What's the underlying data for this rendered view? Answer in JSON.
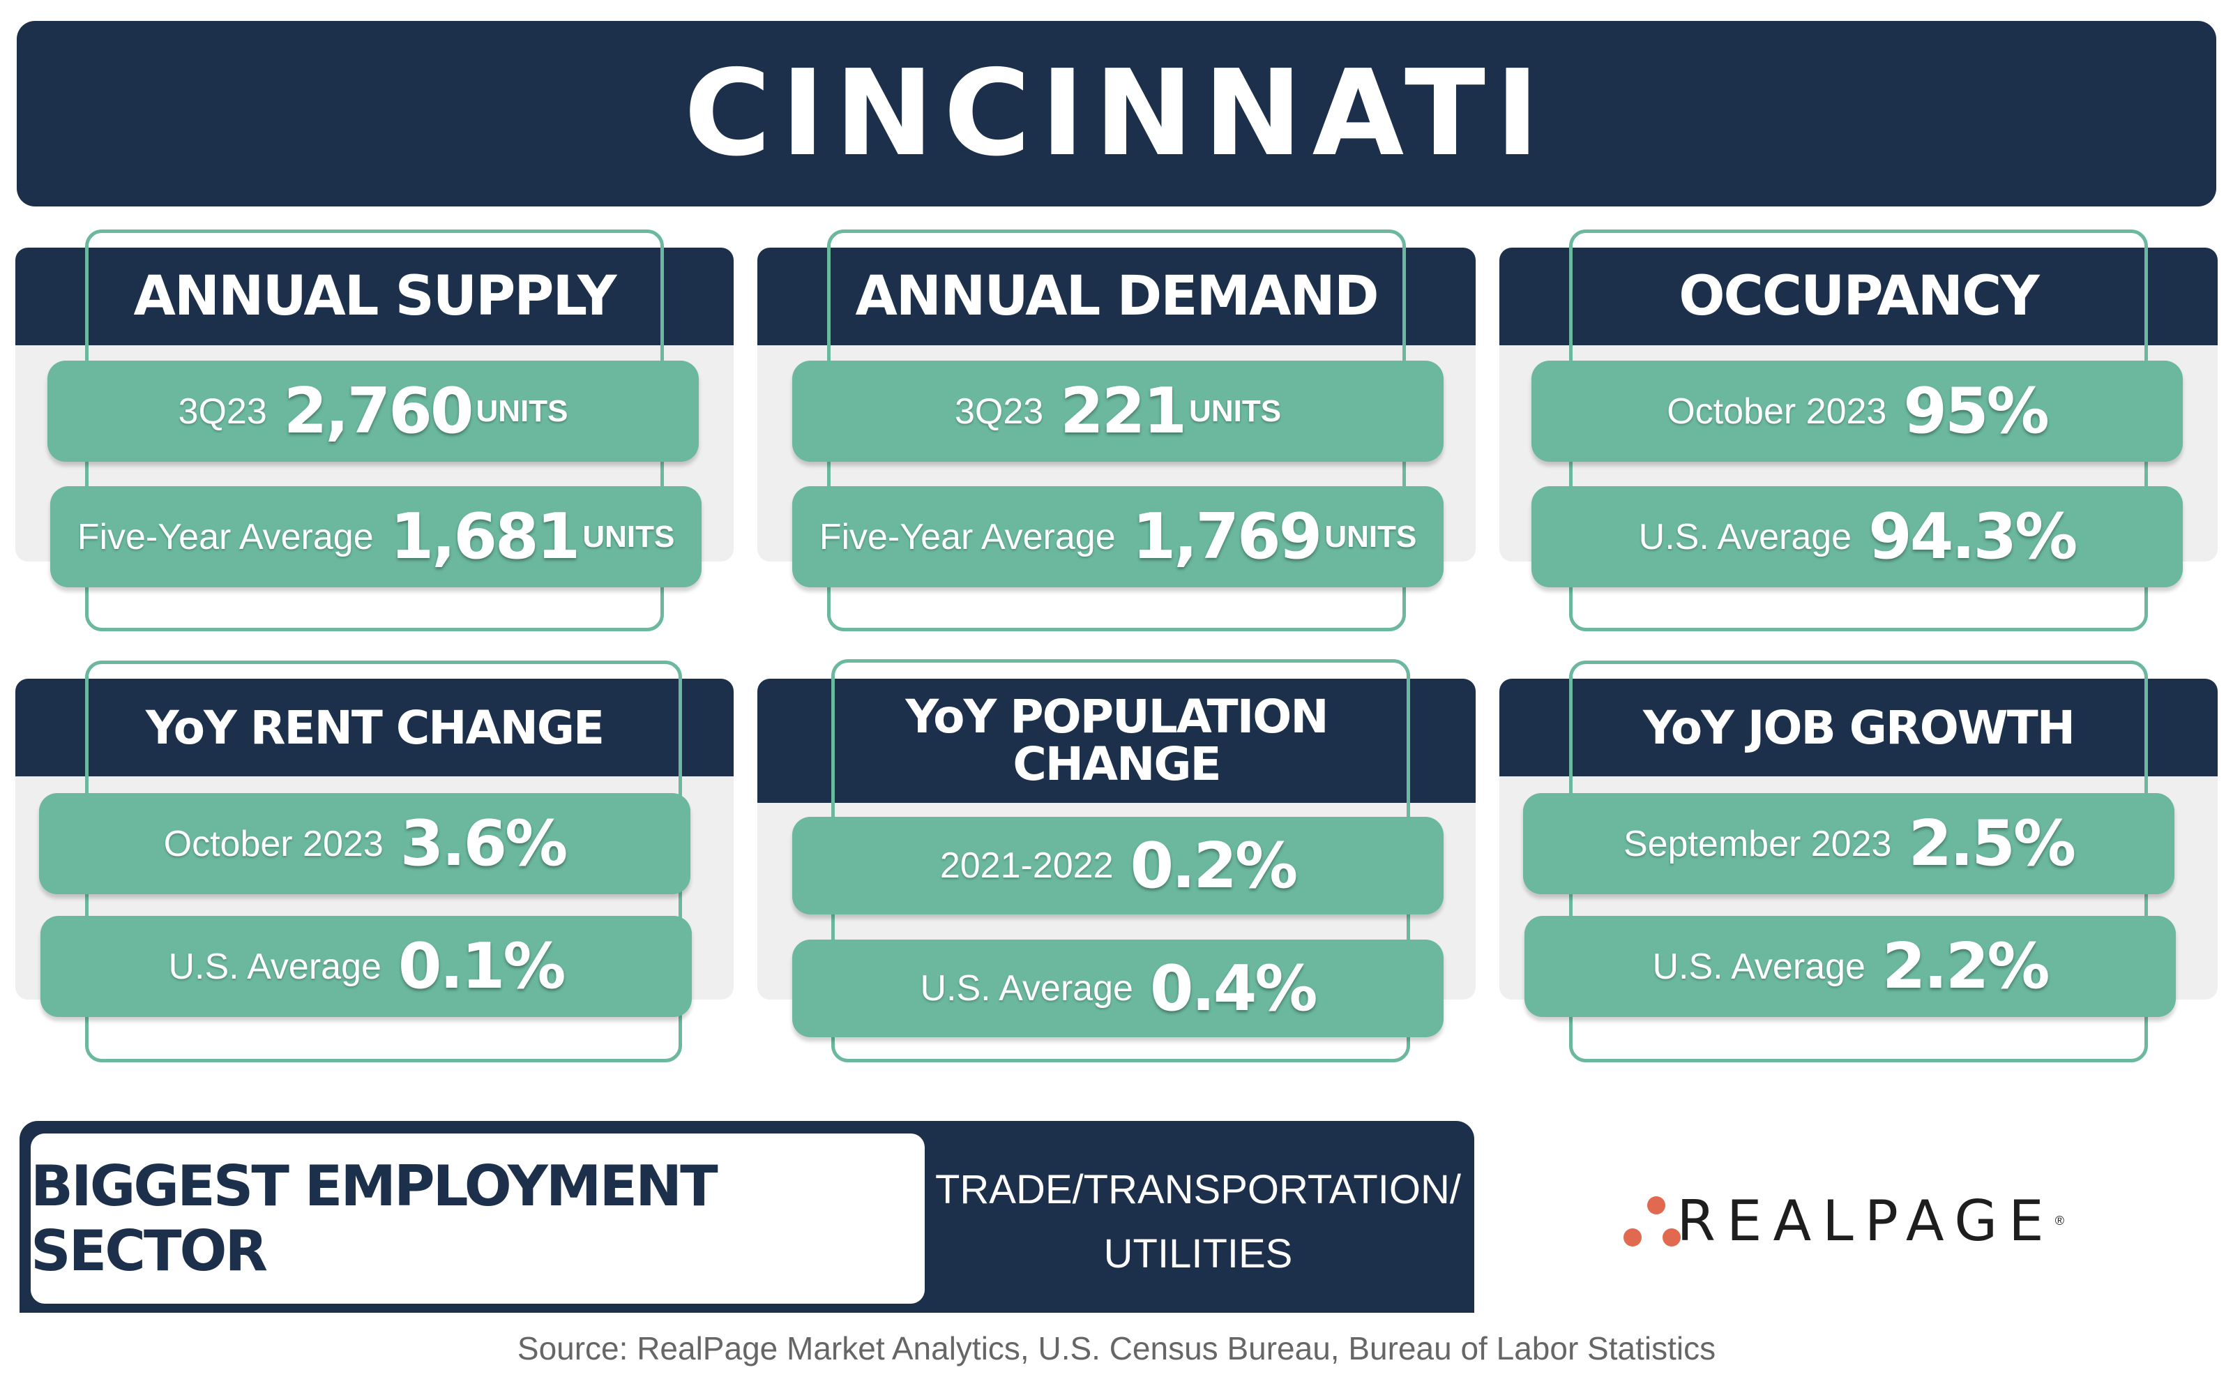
{
  "title": "CINCINNATI",
  "cards": [
    {
      "name": "annual-supply",
      "heading": "ANNUAL SUPPLY",
      "rows": [
        {
          "label": "3Q23",
          "value": "2,760",
          "unit": "UNITS"
        },
        {
          "label": "Five-Year Average",
          "value": "1,681",
          "unit": "UNITS"
        }
      ]
    },
    {
      "name": "annual-demand",
      "heading": "ANNUAL DEMAND",
      "rows": [
        {
          "label": "3Q23",
          "value": "221",
          "unit": "UNITS"
        },
        {
          "label": "Five-Year Average",
          "value": "1,769",
          "unit": "UNITS"
        }
      ]
    },
    {
      "name": "occupancy",
      "heading": "OCCUPANCY",
      "rows": [
        {
          "label": "October 2023",
          "value": "95%",
          "unit": ""
        },
        {
          "label": "U.S. Average",
          "value": "94.3%",
          "unit": ""
        }
      ]
    },
    {
      "name": "yoy-rent-change",
      "heading": "YoY RENT CHANGE",
      "rows": [
        {
          "label": "October 2023",
          "value": "3.6%",
          "unit": ""
        },
        {
          "label": "U.S. Average",
          "value": "0.1%",
          "unit": ""
        }
      ]
    },
    {
      "name": "yoy-population-change",
      "heading_line1": "YoY POPULATION",
      "heading_line2": "CHANGE",
      "rows": [
        {
          "label": "2021-2022",
          "value": "0.2%",
          "unit": ""
        },
        {
          "label": "U.S. Average",
          "value": "0.4%",
          "unit": ""
        }
      ]
    },
    {
      "name": "yoy-job-growth",
      "heading": "YoY JOB GROWTH",
      "rows": [
        {
          "label": "September 2023",
          "value": "2.5%",
          "unit": ""
        },
        {
          "label": "U.S. Average",
          "value": "2.2%",
          "unit": ""
        }
      ]
    }
  ],
  "sector": {
    "label": "BIGGEST EMPLOYMENT SECTOR",
    "value_line1": "TRADE/TRANSPORTATION/",
    "value_line2": "UTILITIES"
  },
  "logo": {
    "wordmark": "REALPAGE",
    "registered": "®"
  },
  "source": "Source: RealPage Market Analytics, U.S. Census Bureau, Bureau of Labor Statistics",
  "colors": {
    "navy": "#1c2f4b",
    "teal": "#6bb89e",
    "light_gray": "#efefef",
    "logo_dot": "#e0694f"
  }
}
